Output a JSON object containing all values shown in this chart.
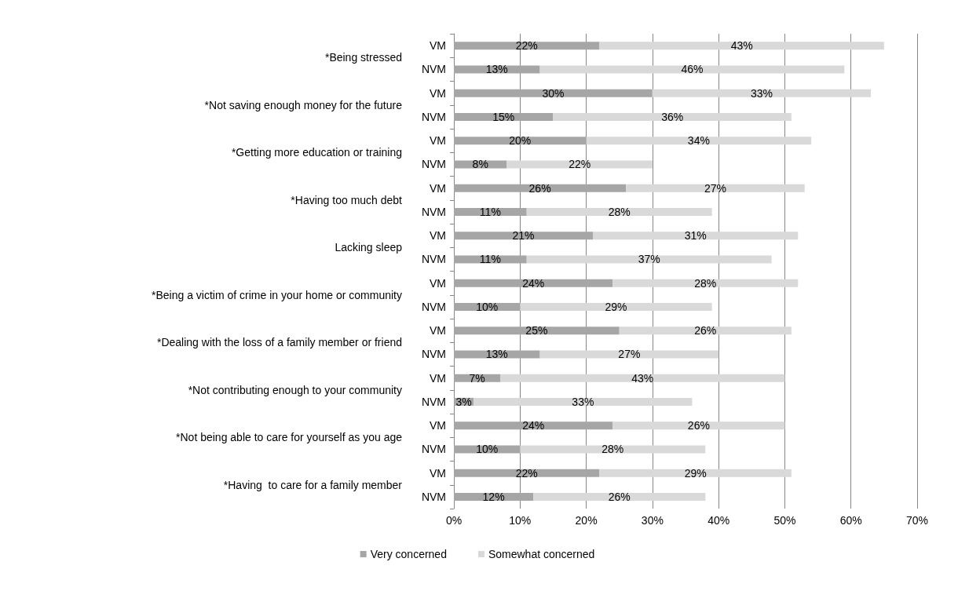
{
  "chart_data": {
    "type": "bar",
    "orientation": "horizontal",
    "stacked": true,
    "categories": [
      "VM",
      "NVM",
      "VM",
      "NVM",
      "VM",
      "NVM",
      "VM",
      "NVM",
      "VM",
      "NVM",
      "VM",
      "NVM",
      "VM",
      "NVM",
      "VM",
      "NVM",
      "VM",
      "NVM",
      "VM",
      "NVM"
    ],
    "annotations": [
      "*Being stressed",
      "*Not saving enough money for the future",
      "*Getting more education or training",
      "*Having too much debt",
      "Lacking sleep",
      "*Being a victim of crime in your home or community",
      "*Dealing with the loss of a family member or friend",
      "*Not contributing enough to your community",
      "*Not being able to care for yourself as you age",
      "*Having  to care for a family member"
    ],
    "series": [
      {
        "name": "Very concerned",
        "color": "#a6a6a6",
        "values": [
          22,
          13,
          30,
          15,
          20,
          8,
          26,
          11,
          21,
          11,
          24,
          10,
          25,
          13,
          7,
          3,
          24,
          10,
          22,
          12
        ],
        "value_labels": [
          "22%",
          "13%",
          "30%",
          "15%",
          "20%",
          "8%",
          "26%",
          "11%",
          "21%",
          "11%",
          "24%",
          "10%",
          "25%",
          "13%",
          "7%",
          "3%",
          "24%",
          "10%",
          "22%",
          "12%"
        ]
      },
      {
        "name": "Somewhat concerned",
        "color": "#d9d9d9",
        "values": [
          43,
          46,
          33,
          36,
          34,
          22,
          27,
          28,
          31,
          37,
          28,
          29,
          26,
          27,
          43,
          33,
          26,
          28,
          29,
          26
        ],
        "value_labels": [
          "43%",
          "46%",
          "33%",
          "36%",
          "34%",
          "22%",
          "27%",
          "28%",
          "31%",
          "37%",
          "28%",
          "29%",
          "26%",
          "27%",
          "43%",
          "33%",
          "26%",
          "28%",
          "29%",
          "26%"
        ]
      }
    ],
    "xlim": [
      0,
      70
    ],
    "xticks": [
      {
        "value": 0,
        "label": "0%"
      },
      {
        "value": 10,
        "label": "10%"
      },
      {
        "value": 20,
        "label": "20%"
      },
      {
        "value": 30,
        "label": "30%"
      },
      {
        "value": 40,
        "label": "40%"
      },
      {
        "value": 50,
        "label": "50%"
      },
      {
        "value": 60,
        "label": "60%"
      },
      {
        "value": 70,
        "label": "70%"
      }
    ],
    "grid": "x",
    "legend": "bottom"
  }
}
